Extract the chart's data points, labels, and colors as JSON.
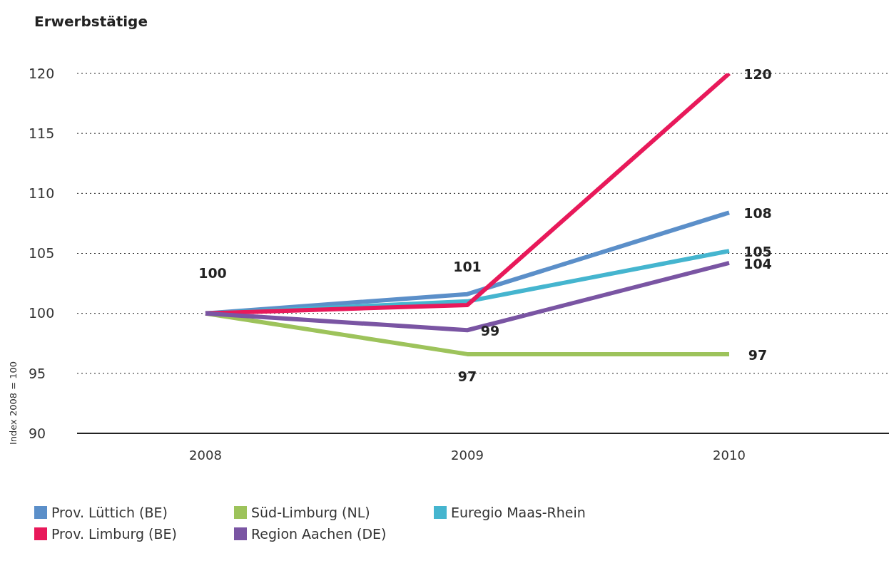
{
  "chart_data": {
    "type": "line",
    "title": "Erwerbstätige",
    "ylabel": "Index 2008 = 100",
    "categories": [
      "2008",
      "2009",
      "2010"
    ],
    "series": [
      {
        "name": "Prov. Lüttich (BE)",
        "color": "#5b8fc9",
        "values": [
          100,
          101.6,
          108.4
        ],
        "value_labels": [
          "100",
          null,
          "108"
        ]
      },
      {
        "name": "Süd-Limburg (NL)",
        "color": "#9dc35b",
        "values": [
          100,
          96.6,
          96.6
        ],
        "value_labels": [
          null,
          "97",
          "97"
        ]
      },
      {
        "name": "Euregio Maas-Rhein",
        "color": "#45b5cf",
        "values": [
          100,
          101,
          105.2
        ],
        "value_labels": [
          null,
          "101",
          "105"
        ]
      },
      {
        "name": "Prov. Limburg (BE)",
        "color": "#e8195a",
        "values": [
          100,
          100.7,
          120
        ],
        "value_labels": [
          null,
          null,
          "120"
        ]
      },
      {
        "name": "Region Aachen (DE)",
        "color": "#7a55a3",
        "values": [
          100,
          98.6,
          104.2
        ],
        "value_labels": [
          null,
          "99",
          "104"
        ]
      }
    ],
    "ylim": [
      90,
      120
    ],
    "yticks": [
      90,
      95,
      100,
      105,
      110,
      115,
      120
    ],
    "grid": "y",
    "legend": "bottom",
    "marker": "none",
    "line_style": "solid"
  }
}
